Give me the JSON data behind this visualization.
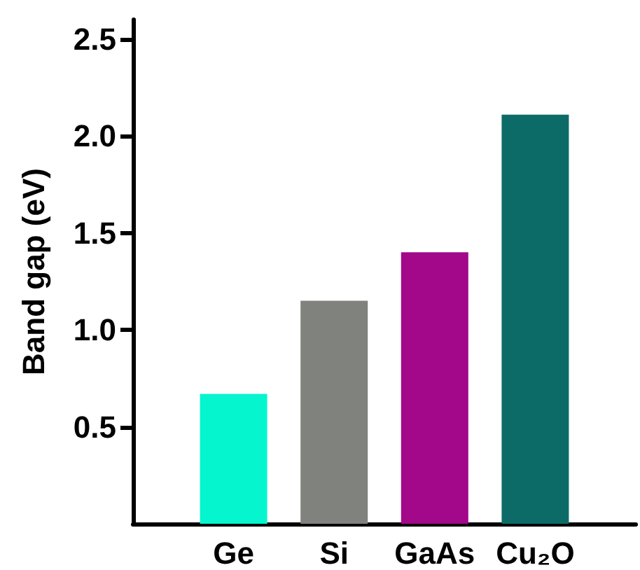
{
  "chart_data": {
    "type": "bar",
    "ylabel": "Band gap (eV)",
    "categories": [
      "Ge",
      "Si",
      "GaAs",
      "Cu₂O"
    ],
    "values": [
      0.67,
      1.15,
      1.4,
      2.11
    ],
    "colors": [
      "#05f5cf",
      "#7f827d",
      "#a3078a",
      "#0d6b67"
    ],
    "ylim": [
      0,
      2.6
    ],
    "yticks": [
      {
        "value": 0.5,
        "label": "0.5"
      },
      {
        "value": 1,
        "label": "1.0"
      },
      {
        "value": 1.5,
        "label": "1.5"
      },
      {
        "value": 2,
        "label": "2.0"
      },
      {
        "value": 2.5,
        "label": "2.5"
      }
    ],
    "grid": false
  }
}
